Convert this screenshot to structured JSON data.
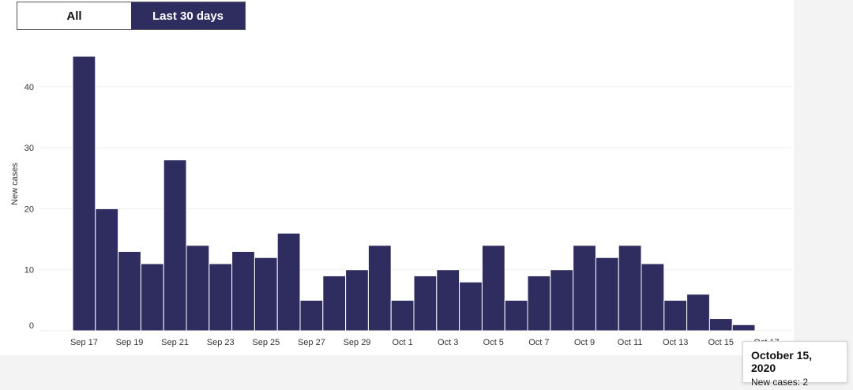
{
  "toggle": {
    "all_label": "All",
    "last30_label": "Last 30 days",
    "active": "last30"
  },
  "tooltip": {
    "date": "October 15, 2020",
    "label": "New cases:",
    "value": "2"
  },
  "colors": {
    "bar": "#2f2d5f",
    "grid": "#eeeeee",
    "axis_text": "#333333"
  },
  "chart_data": {
    "type": "bar",
    "title": "",
    "xlabel": "",
    "ylabel": "New cases",
    "ylim": [
      0,
      47
    ],
    "yticks": [
      0,
      10,
      20,
      30,
      40
    ],
    "grid": true,
    "dates": [
      "Sep 17",
      "Sep 18",
      "Sep 19",
      "Sep 20",
      "Sep 21",
      "Sep 22",
      "Sep 23",
      "Sep 24",
      "Sep 25",
      "Sep 26",
      "Sep 27",
      "Sep 28",
      "Sep 29",
      "Sep 30",
      "Oct 1",
      "Oct 2",
      "Oct 3",
      "Oct 4",
      "Oct 5",
      "Oct 6",
      "Oct 7",
      "Oct 8",
      "Oct 9",
      "Oct 10",
      "Oct 11",
      "Oct 12",
      "Oct 13",
      "Oct 14",
      "Oct 15",
      "Oct 16"
    ],
    "values": [
      45,
      20,
      13,
      11,
      28,
      14,
      11,
      13,
      12,
      16,
      5,
      9,
      10,
      14,
      5,
      9,
      10,
      8,
      14,
      5,
      9,
      10,
      14,
      12,
      14,
      11,
      5,
      6,
      2,
      1
    ],
    "xtick_labels": [
      "Sep 17",
      "Sep 19",
      "Sep 21",
      "Sep 23",
      "Sep 25",
      "Sep 27",
      "Sep 29",
      "Oct 1",
      "Oct 3",
      "Oct 5",
      "Oct 7",
      "Oct 9",
      "Oct 11",
      "Oct 13",
      "Oct 15",
      "Oct 17"
    ]
  }
}
